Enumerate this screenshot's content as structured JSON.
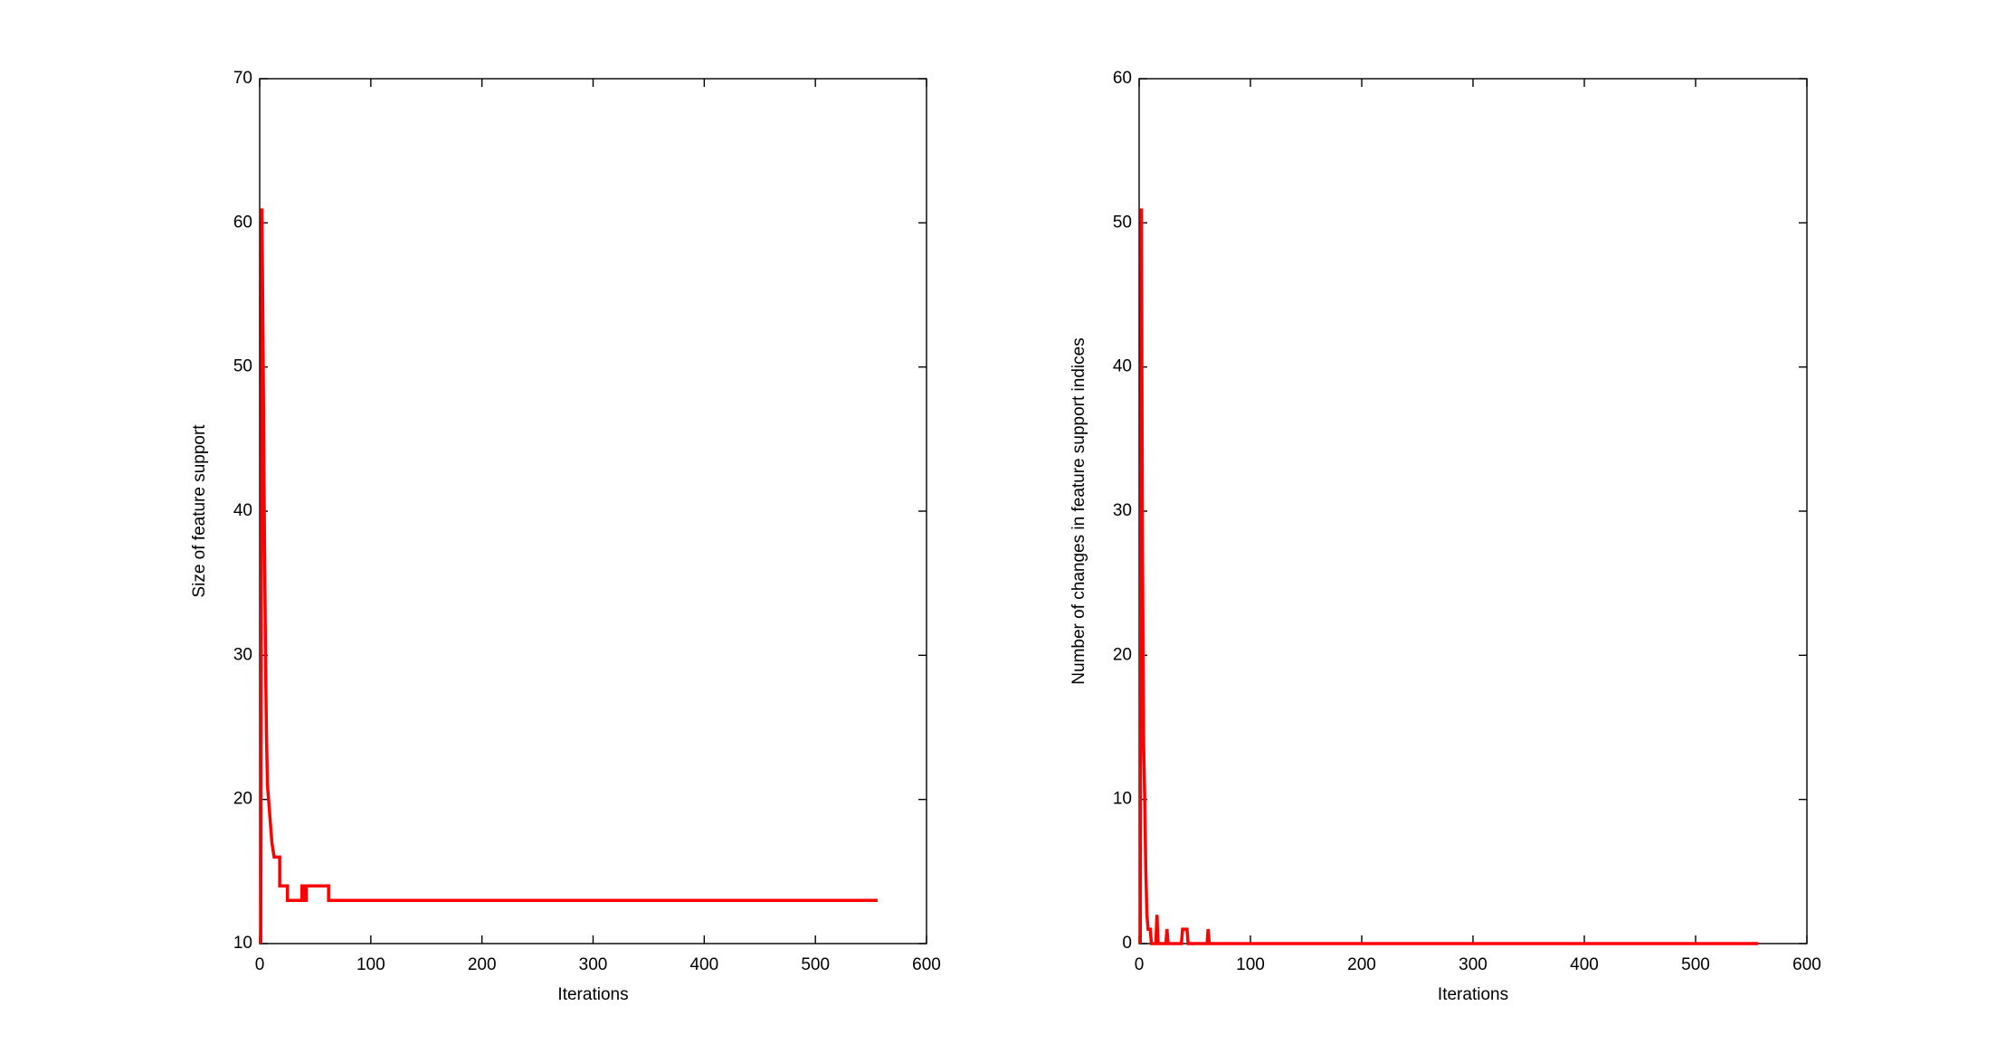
{
  "chart_data": [
    {
      "type": "line",
      "xlabel": "Iterations",
      "ylabel": "Size of feature support",
      "color": "#ff0000",
      "x": [
        1,
        2,
        3,
        4,
        5,
        6,
        7,
        9,
        11,
        13,
        18,
        18,
        25,
        25,
        38,
        38,
        40,
        40,
        42,
        42,
        62,
        62,
        556
      ],
      "values": [
        10,
        61,
        52,
        41,
        32,
        25,
        21,
        19,
        17,
        16,
        16,
        14,
        14,
        13,
        13,
        14,
        14,
        13,
        13,
        14,
        14,
        13,
        13
      ],
      "xlim": [
        0,
        600
      ],
      "xticks": [
        0,
        100,
        200,
        300,
        400,
        500,
        600
      ],
      "ylim": [
        10,
        70
      ],
      "yticks": [
        10,
        20,
        30,
        40,
        50,
        60,
        70
      ]
    },
    {
      "type": "line",
      "xlabel": "Iterations",
      "ylabel": "Number of changes in feature support indices",
      "color": "#ff0000",
      "x": [
        1,
        2,
        3,
        4,
        5,
        6,
        7,
        8,
        10,
        11,
        15,
        16,
        17,
        24,
        25,
        26,
        38,
        39,
        43,
        44,
        61,
        62,
        63,
        556
      ],
      "values": [
        0,
        51,
        27,
        14,
        10,
        5,
        2,
        1,
        1,
        0,
        0,
        2,
        0,
        0,
        1,
        0,
        0,
        1,
        1,
        0,
        0,
        1,
        0,
        0
      ],
      "xlim": [
        0,
        600
      ],
      "xticks": [
        0,
        100,
        200,
        300,
        400,
        500,
        600
      ],
      "ylim": [
        0,
        60
      ],
      "yticks": [
        0,
        10,
        20,
        30,
        40,
        50,
        60
      ]
    }
  ]
}
